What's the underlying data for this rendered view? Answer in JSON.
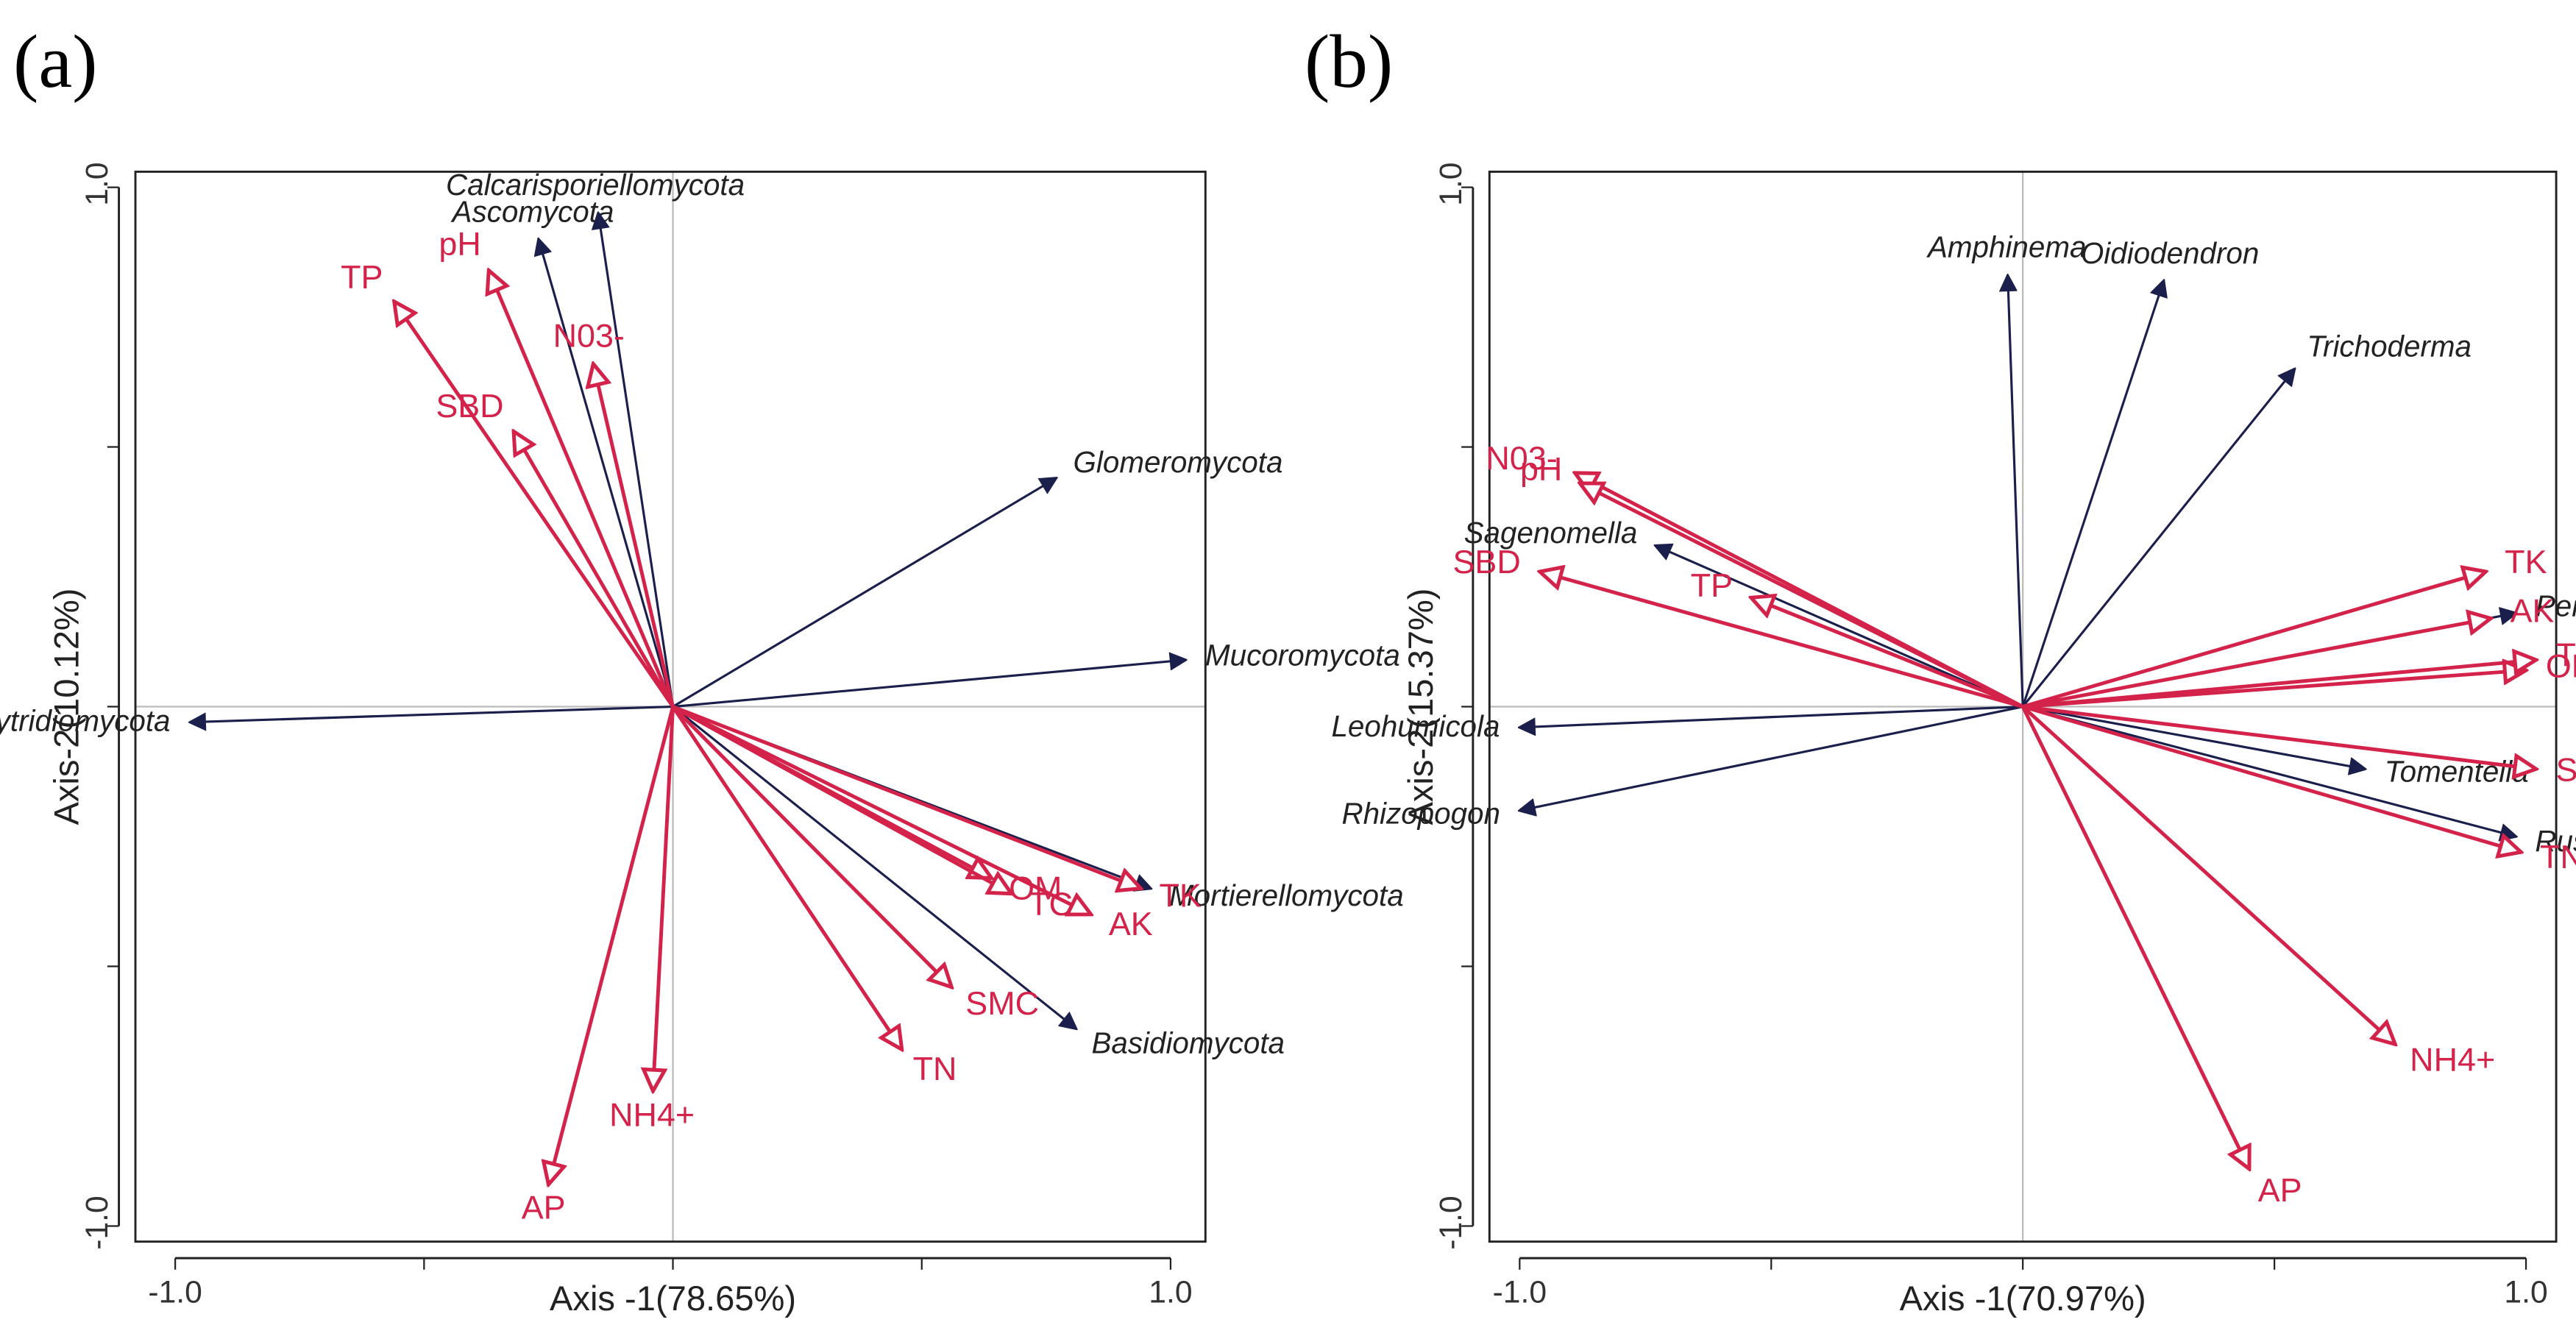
{
  "chart_data": [
    {
      "type": "biplot",
      "panel": "(a)",
      "x_label": "Axis -1(78.65%)",
      "y_label": "Axis-2(10.12%)",
      "xlim": [
        -1.08,
        1.07
      ],
      "ylim": [
        -1.03,
        1.03
      ],
      "xticks": [
        {
          "value": -1,
          "label": "-1.0"
        },
        {
          "value": 1,
          "label": "1.0"
        }
      ],
      "yticks": [
        {
          "value": -1,
          "label": "-1.0"
        },
        {
          "value": 1,
          "label": "1.0"
        }
      ],
      "minor_ticks": [
        -0.5,
        0,
        0.5
      ],
      "zero_lines": true,
      "groups": [
        {
          "color": "#1b1f4b",
          "head": "filled",
          "italic": true,
          "vectors": [
            {
              "label": "Ascomycota",
              "x": -0.27,
              "y": 0.9
            },
            {
              "label": "Calcarisporiellomycota",
              "x": -0.15,
              "y": 0.95
            },
            {
              "label": "Glomeromycota",
              "x": 0.77,
              "y": 0.44
            },
            {
              "label": "Mucoromycota",
              "x": 1.03,
              "y": 0.09
            },
            {
              "label": "Chytridiomycota",
              "x": -0.97,
              "y": -0.03
            },
            {
              "label": "Mortierellomycota",
              "x": 0.96,
              "y": -0.35
            },
            {
              "label": "Basidiomycota",
              "x": 0.81,
              "y": -0.62
            }
          ]
        },
        {
          "color": "#d4234a",
          "head": "open",
          "italic": false,
          "vectors": [
            {
              "label": "TP",
              "x": -0.56,
              "y": 0.78
            },
            {
              "label": "pH",
              "x": -0.37,
              "y": 0.84
            },
            {
              "label": "SBD",
              "x": -0.32,
              "y": 0.53
            },
            {
              "label": "N03-",
              "x": -0.16,
              "y": 0.66
            },
            {
              "label": "OM",
              "x": 0.64,
              "y": -0.33
            },
            {
              "label": "TC",
              "x": 0.68,
              "y": -0.36
            },
            {
              "label": "AK",
              "x": 0.84,
              "y": -0.4
            },
            {
              "label": "TK",
              "x": 0.94,
              "y": -0.35
            },
            {
              "label": "SMC",
              "x": 0.56,
              "y": -0.54
            },
            {
              "label": "TN",
              "x": 0.46,
              "y": -0.66
            },
            {
              "label": "NH4+",
              "x": -0.04,
              "y": -0.74
            },
            {
              "label": "AP",
              "x": -0.25,
              "y": -0.92
            }
          ]
        }
      ]
    },
    {
      "type": "biplot",
      "panel": "(b)",
      "x_label": "Axis -1(70.97%)",
      "y_label": "Axis-2(15.37%)",
      "xlim": [
        -1.06,
        1.06
      ],
      "ylim": [
        -1.03,
        1.03
      ],
      "xticks": [
        {
          "value": -1,
          "label": "-1.0"
        },
        {
          "value": 1,
          "label": "1.0"
        }
      ],
      "yticks": [
        {
          "value": -1,
          "label": "-1.0"
        },
        {
          "value": 1,
          "label": "1.0"
        }
      ],
      "minor_ticks": [
        -0.5,
        0,
        0.5
      ],
      "zero_lines": true,
      "groups": [
        {
          "color": "#1b1f4b",
          "head": "filled",
          "italic": true,
          "vectors": [
            {
              "label": "Amphinema",
              "x": -0.03,
              "y": 0.83
            },
            {
              "label": "Oidiodendron",
              "x": 0.28,
              "y": 0.82
            },
            {
              "label": "Trichoderma",
              "x": 0.54,
              "y": 0.65
            },
            {
              "label": "Sagenomella",
              "x": -0.73,
              "y": 0.31
            },
            {
              "label": "Penicillium",
              "x": 0.98,
              "y": 0.18
            },
            {
              "label": "Leohumicola",
              "x": -1.0,
              "y": -0.04
            },
            {
              "label": "Rhizopogon",
              "x": -1.0,
              "y": -0.2
            },
            {
              "label": "Tomentella",
              "x": 0.68,
              "y": -0.12
            },
            {
              "label": "Russula",
              "x": 0.98,
              "y": -0.25
            }
          ]
        },
        {
          "color": "#d4234a",
          "head": "open",
          "italic": false,
          "vectors": [
            {
              "label": "N03-",
              "x": -0.89,
              "y": 0.45
            },
            {
              "label": "pH",
              "x": -0.88,
              "y": 0.43
            },
            {
              "label": "SBD",
              "x": -0.96,
              "y": 0.26
            },
            {
              "label": "TP",
              "x": -0.54,
              "y": 0.21
            },
            {
              "label": "TK",
              "x": 0.92,
              "y": 0.26
            },
            {
              "label": "AK",
              "x": 0.93,
              "y": 0.17
            },
            {
              "label": "OM",
              "x": 1.0,
              "y": 0.07
            },
            {
              "label": "TC",
              "x": 1.02,
              "y": 0.09
            },
            {
              "label": "SMC",
              "x": 1.02,
              "y": -0.12
            },
            {
              "label": "TN",
              "x": 0.99,
              "y": -0.28
            },
            {
              "label": "NH4+",
              "x": 0.74,
              "y": -0.65
            },
            {
              "label": "AP",
              "x": 0.45,
              "y": -0.89
            }
          ]
        }
      ]
    }
  ]
}
